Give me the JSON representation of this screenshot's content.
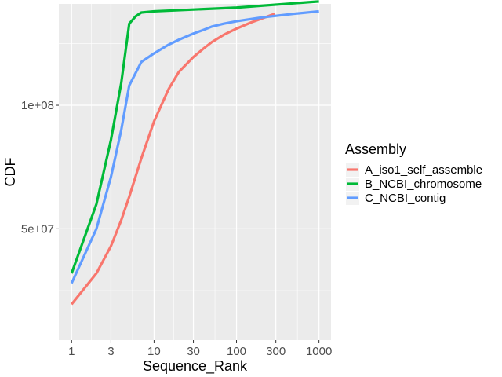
{
  "chart_data": {
    "type": "line",
    "xlabel": "Sequence_Rank",
    "ylabel": "CDF",
    "x_scale": "log10",
    "xlim": [
      0.7,
      1400
    ],
    "ylim": [
      5000000,
      141000000
    ],
    "x_ticks": [
      1,
      3,
      10,
      30,
      100,
      300,
      1000
    ],
    "x_tick_labels": [
      "1",
      "3",
      "10",
      "30",
      "100",
      "300",
      "1000"
    ],
    "y_ticks": [
      50000000,
      100000000
    ],
    "y_tick_labels": [
      "5e+07",
      "1e+08"
    ],
    "grid": true,
    "legend": {
      "title": "Assembly",
      "placement": "right"
    },
    "series": [
      {
        "name": "A_iso1_self_assemble",
        "color": "#F8766D",
        "x": [
          1,
          2,
          3,
          4,
          5,
          7,
          10,
          15,
          20,
          30,
          40,
          50,
          70,
          100,
          150,
          200,
          290
        ],
        "y": [
          19500000,
          32000000,
          43000000,
          53500000,
          63000000,
          78500000,
          93500000,
          106500000,
          113500000,
          119500000,
          123000000,
          125500000,
          128500000,
          131000000,
          133500000,
          135000000,
          137000000
        ]
      },
      {
        "name": "B_NCBI_chromosome",
        "color": "#00BA38",
        "x": [
          1,
          2,
          3,
          4,
          5,
          6,
          7,
          10,
          100,
          1000
        ],
        "y": [
          32000000,
          60000000,
          86000000,
          109000000,
          133000000,
          136000000,
          137500000,
          138000000,
          139500000,
          142000000
        ]
      },
      {
        "name": "C_NCBI_contig",
        "color": "#619CFF",
        "x": [
          1,
          2,
          3,
          4,
          5,
          7,
          10,
          15,
          20,
          30,
          40,
          50,
          70,
          100,
          200,
          500,
          1000
        ],
        "y": [
          28000000,
          50000000,
          71000000,
          90000000,
          108000000,
          117500000,
          121000000,
          124500000,
          126500000,
          129000000,
          130500000,
          131800000,
          133000000,
          134000000,
          135500000,
          137000000,
          138000000
        ]
      }
    ]
  }
}
